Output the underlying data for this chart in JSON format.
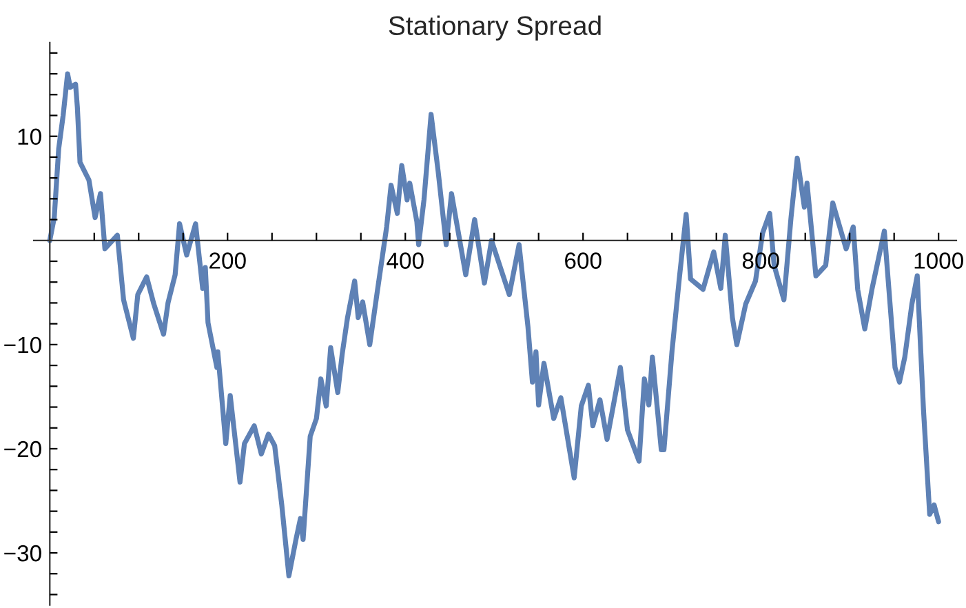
{
  "chart_data": {
    "type": "line",
    "title": "Stationary Spread",
    "x": [
      0,
      5,
      10,
      15,
      20,
      23,
      29,
      31,
      34,
      44,
      51,
      57,
      62,
      76,
      83,
      94,
      99,
      109,
      117,
      128,
      133,
      141,
      146,
      154,
      164,
      172,
      175,
      178,
      188,
      189,
      198,
      203,
      214,
      219,
      230,
      238,
      246,
      253,
      261,
      269,
      277,
      282,
      285,
      290,
      293,
      300,
      305,
      311,
      316,
      324,
      329,
      335,
      343,
      347,
      352,
      360,
      368,
      379,
      384,
      391,
      396,
      402,
      405,
      413,
      415,
      421,
      429,
      437,
      446,
      452,
      468,
      478,
      489,
      497,
      507,
      517,
      528,
      538,
      543,
      547,
      550,
      556,
      567,
      575,
      590,
      598,
      606,
      611,
      619,
      627,
      642,
      650,
      663,
      669,
      674,
      678,
      688,
      691,
      700,
      708,
      716,
      721,
      735,
      747,
      755,
      760,
      768,
      773,
      783,
      794,
      802,
      810,
      815,
      826,
      834,
      841,
      849,
      852,
      862,
      873,
      881,
      896,
      904,
      909,
      917,
      925,
      939,
      951,
      956,
      962,
      970,
      976,
      983,
      990,
      995,
      1000
    ],
    "series": [
      {
        "color": "#5e81b5",
        "values": [
          0,
          2.2,
          8.8,
          12,
          16,
          14.7,
          15,
          12.8,
          7.5,
          5.8,
          2.2,
          4.5,
          -0.8,
          0.5,
          -5.7,
          -9.4,
          -5.2,
          -3.5,
          -6.1,
          -9,
          -6,
          -3.3,
          1.6,
          -1.4,
          1.6,
          -4.6,
          -2.6,
          -7.9,
          -12.2,
          -10.7,
          -19.5,
          -14.9,
          -23.2,
          -19.5,
          -17.8,
          -20.5,
          -18.6,
          -19.7,
          -25.4,
          -32.2,
          -28.7,
          -26.7,
          -28.7,
          -22.5,
          -18.8,
          -17.1,
          -13.3,
          -15.9,
          -10.3,
          -14.6,
          -10.9,
          -7.4,
          -3.9,
          -7.4,
          -5.9,
          -10,
          -5.2,
          1.3,
          5.3,
          2.6,
          7.2,
          3.9,
          5.5,
          1.8,
          -0.4,
          3.9,
          12.1,
          6.6,
          -0.4,
          4.5,
          -3.3,
          2,
          -4.1,
          0,
          -2.6,
          -5.2,
          -0.4,
          -8.3,
          -13.6,
          -10.7,
          -15.8,
          -11.8,
          -17.1,
          -15.1,
          -22.8,
          -15.9,
          -13.9,
          -17.8,
          -15.3,
          -19.1,
          -12.2,
          -18.2,
          -21.2,
          -13.3,
          -15.8,
          -11.2,
          -20.1,
          -20.1,
          -10.7,
          -3.9,
          2.5,
          -3.7,
          -4.7,
          -1.1,
          -4.6,
          0.5,
          -7.4,
          -10,
          -6.1,
          -3.9,
          0.7,
          2.6,
          -2.4,
          -5.7,
          2.2,
          7.9,
          3.2,
          5.5,
          -3.4,
          -2.4,
          3.6,
          -0.8,
          1.3,
          -4.7,
          -8.5,
          -4.7,
          0.9,
          -12.2,
          -13.6,
          -11.2,
          -6.1,
          -3.4,
          -16.2,
          -26.3,
          -25.4,
          -27
        ]
      }
    ],
    "xlim": [
      -18,
      1020
    ],
    "ylim": [
      -35,
      19
    ],
    "xticks": [
      {
        "value": 50,
        "label": null
      },
      {
        "value": 100,
        "label": null
      },
      {
        "value": 150,
        "label": null
      },
      200,
      {
        "value": 250,
        "label": null
      },
      {
        "value": 300,
        "label": null
      },
      {
        "value": 350,
        "label": null
      },
      400,
      {
        "value": 450,
        "label": null
      },
      {
        "value": 500,
        "label": null
      },
      {
        "value": 550,
        "label": null
      },
      600,
      {
        "value": 650,
        "label": null
      },
      {
        "value": 700,
        "label": null
      },
      {
        "value": 750,
        "label": null
      },
      800,
      {
        "value": 850,
        "label": null
      },
      {
        "value": 900,
        "label": null
      },
      {
        "value": 950,
        "label": null
      },
      1000
    ],
    "yticks": [
      {
        "value": -34,
        "label": null
      },
      {
        "value": -32,
        "label": null
      },
      -30,
      {
        "value": -28,
        "label": null
      },
      {
        "value": -26,
        "label": null
      },
      {
        "value": -24,
        "label": null
      },
      {
        "value": -22,
        "label": null
      },
      -20,
      {
        "value": -18,
        "label": null
      },
      {
        "value": -16,
        "label": null
      },
      {
        "value": -14,
        "label": null
      },
      {
        "value": -12,
        "label": null
      },
      -10,
      {
        "value": -8,
        "label": null
      },
      {
        "value": -6,
        "label": null
      },
      {
        "value": -4,
        "label": null
      },
      {
        "value": -2,
        "label": null
      },
      {
        "value": 2,
        "label": null
      },
      {
        "value": 4,
        "label": null
      },
      {
        "value": 6,
        "label": null
      },
      {
        "value": 8,
        "label": null
      },
      10,
      {
        "value": 12,
        "label": null
      },
      {
        "value": 14,
        "label": null
      },
      {
        "value": 16,
        "label": null
      },
      {
        "value": 18,
        "label": null
      }
    ],
    "grid": false,
    "marker": "none",
    "line_style": "solid"
  }
}
